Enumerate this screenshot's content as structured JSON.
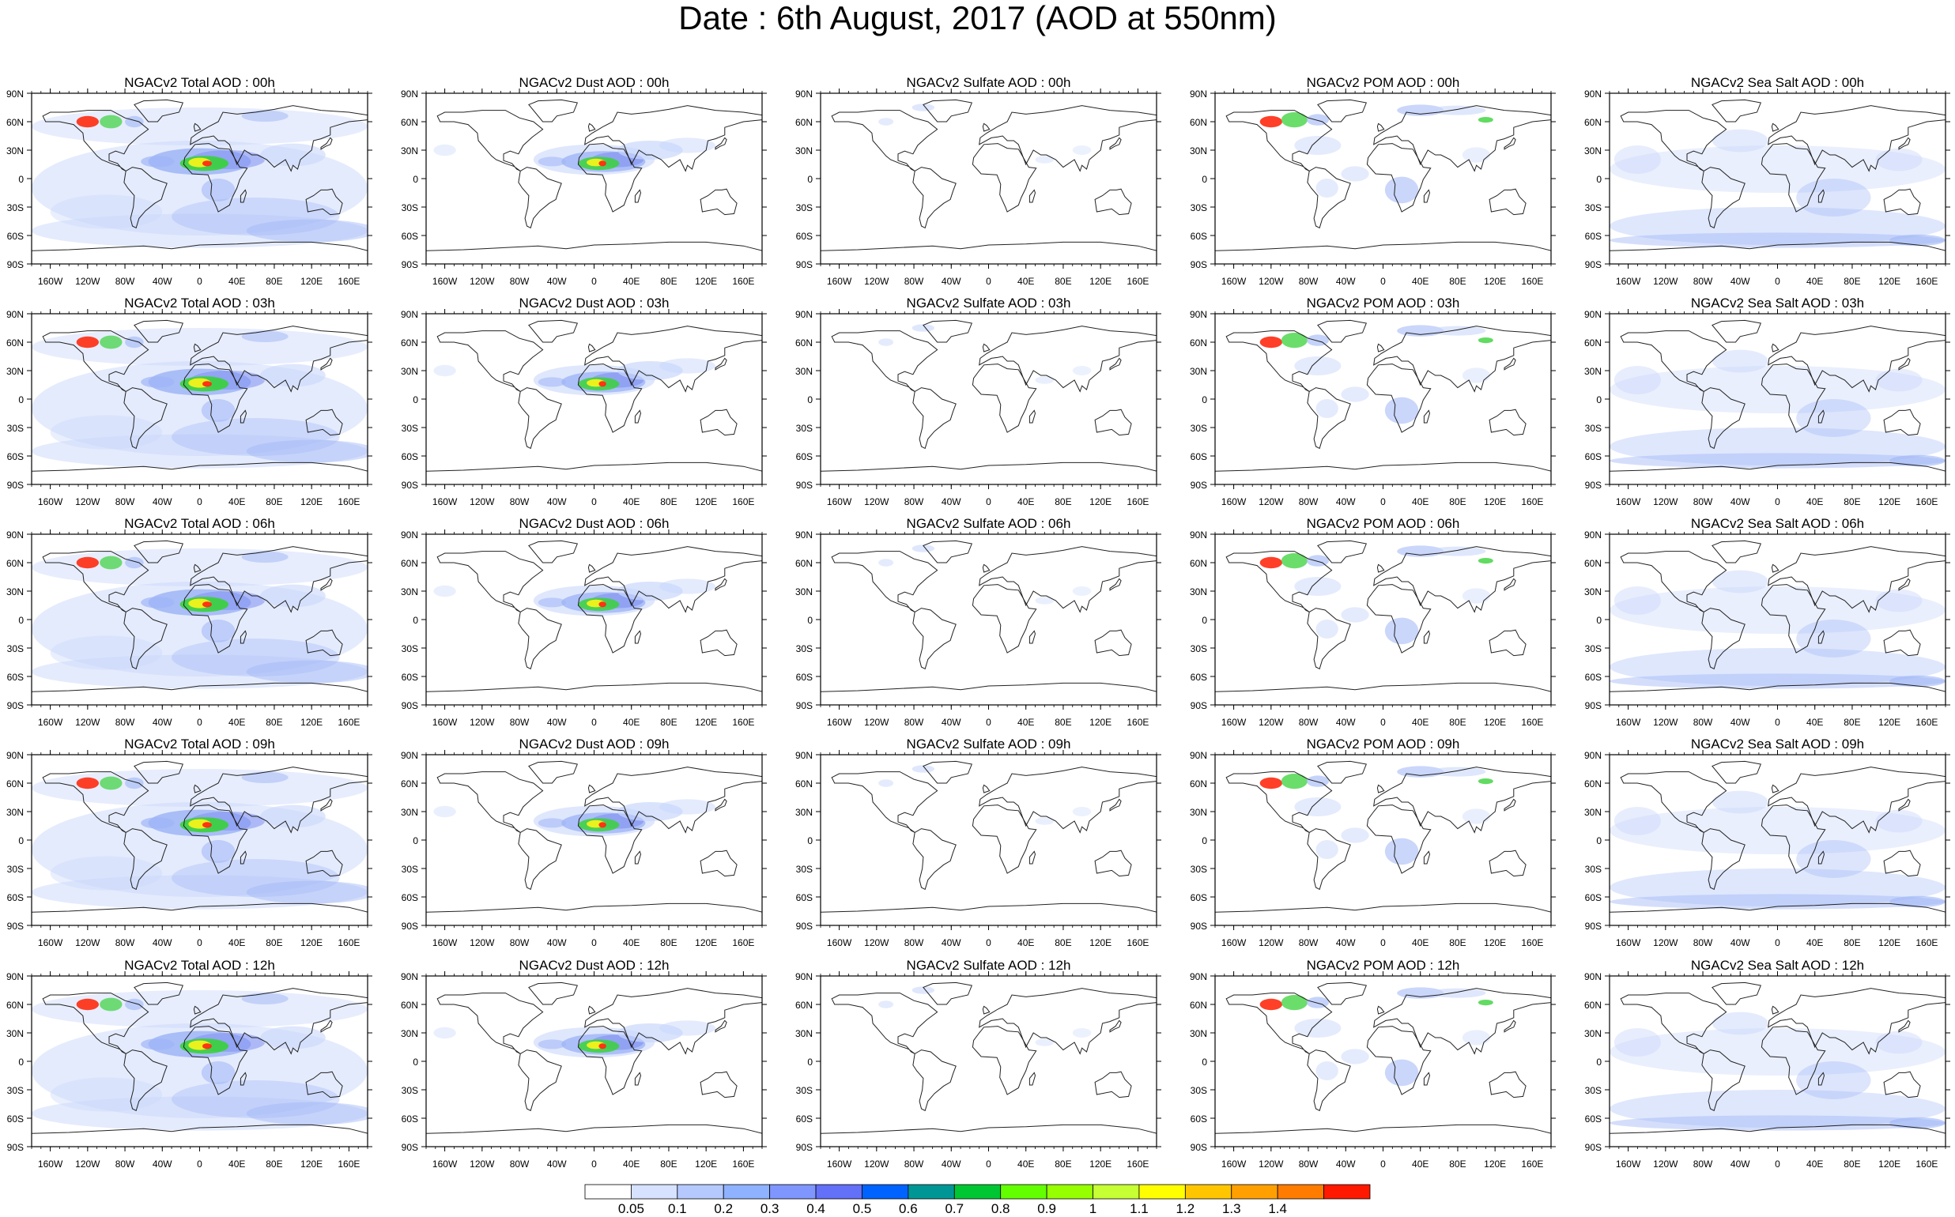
{
  "title": "Date : 6th August, 2017 (AOD at 550nm)",
  "panels": [
    [
      "NGACv2 Total AOD : 00h",
      "NGACv2 Dust AOD : 00h",
      "NGACv2 Sulfate AOD : 00h",
      "NGACv2 POM AOD : 00h",
      "NGACv2 Sea Salt AOD : 00h"
    ],
    [
      "NGACv2 Total AOD : 03h",
      "NGACv2 Dust AOD : 03h",
      "NGACv2 Sulfate AOD : 03h",
      "NGACv2 POM AOD : 03h",
      "NGACv2 Sea Salt AOD : 03h"
    ],
    [
      "NGACv2 Total AOD : 06h",
      "NGACv2 Dust AOD : 06h",
      "NGACv2 Sulfate AOD : 06h",
      "NGACv2 POM AOD : 06h",
      "NGACv2 Sea Salt AOD : 06h"
    ],
    [
      "NGACv2 Total AOD : 09h",
      "NGACv2 Dust AOD : 09h",
      "NGACv2 Sulfate AOD : 09h",
      "NGACv2 POM AOD : 09h",
      "NGACv2 Sea Salt  AOD : 09h"
    ],
    [
      "NGACv2 Total AOD : 12h",
      "NGACv2 Dust AOD : 12h",
      "NGACv2 Sulfate AOD : 12h",
      "NGACv2 POM  AOD : 12h",
      "NGACv2 Sea Salt AOD : 12h"
    ]
  ],
  "lat_ticks": [
    "90N",
    "60N",
    "30N",
    "0",
    "30S",
    "60S",
    "90S"
  ],
  "lon_ticks": [
    "160W",
    "120W",
    "80W",
    "40W",
    "0",
    "40E",
    "80E",
    "120E",
    "160E"
  ],
  "colorbar": {
    "labels": [
      "0.05",
      "0.1",
      "0.2",
      "0.3",
      "0.4",
      "0.5",
      "0.6",
      "0.7",
      "0.8",
      "0.9",
      "1",
      "1.1",
      "1.2",
      "1.3",
      "1.4"
    ],
    "colors": [
      "#ffffff",
      "#d6e2ff",
      "#b5c9ff",
      "#8eb2ff",
      "#7f96ff",
      "#6370f8",
      "#0063ff",
      "#009696",
      "#00c633",
      "#63ff00",
      "#96ff00",
      "#c6ff33",
      "#ffff00",
      "#ffc600",
      "#ffa000",
      "#ff7c00",
      "#ff1900"
    ]
  },
  "map_colors": {
    "light": "#c9d7fb",
    "mid": "#9fb5f6",
    "strong": "#7f90f0",
    "green": "#39d23a",
    "yellow": "#f3f21a",
    "orange": "#ff9a00",
    "red": "#ff2a10"
  }
}
